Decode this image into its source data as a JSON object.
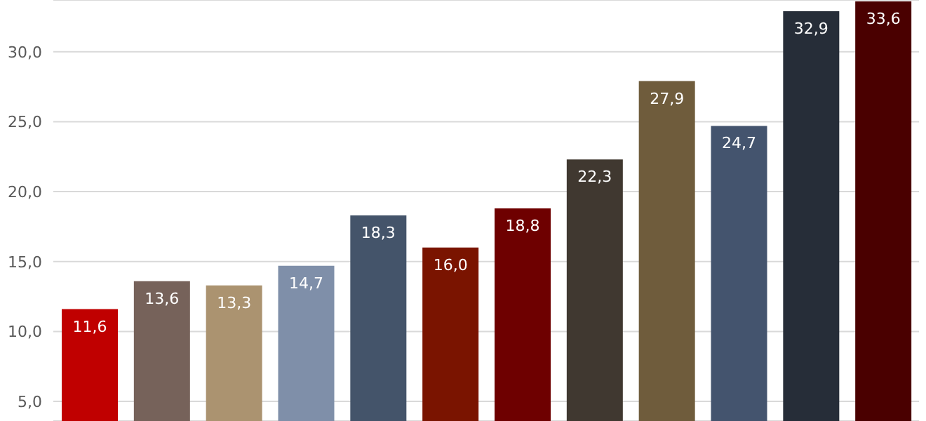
{
  "chart_data": {
    "type": "bar",
    "categories": [
      null,
      null,
      null,
      null,
      null,
      null,
      null,
      null,
      null,
      null,
      null,
      null
    ],
    "values": [
      11.6,
      13.6,
      13.3,
      14.7,
      18.3,
      16.0,
      18.8,
      22.3,
      27.9,
      24.7,
      32.9,
      33.6
    ],
    "colors": [
      "#c00000",
      "#76625a",
      "#ab9370",
      "#7f8fa9",
      "#44546a",
      "#7a1400",
      "#6e0000",
      "#403830",
      "#6f5c3c",
      "#44546e",
      "#262d38",
      "#4a0000"
    ],
    "value_labels": [
      "11,6",
      "13,6",
      "13,3",
      "14,7",
      "18,3",
      "16,0",
      "18,8",
      "22,3",
      "27,9",
      "24,7",
      "32,9",
      "33,6"
    ],
    "ylim": [
      3.6,
      33.7
    ],
    "yticks": [
      {
        "value": 5,
        "label": "5,0"
      },
      {
        "value": 10,
        "label": "10,0"
      },
      {
        "value": 15,
        "label": "15,0"
      },
      {
        "value": 20,
        "label": "20,0"
      },
      {
        "value": 25,
        "label": "25,0"
      },
      {
        "value": 30,
        "label": "30,0"
      }
    ],
    "grid": "y",
    "tick_labels": "y"
  }
}
